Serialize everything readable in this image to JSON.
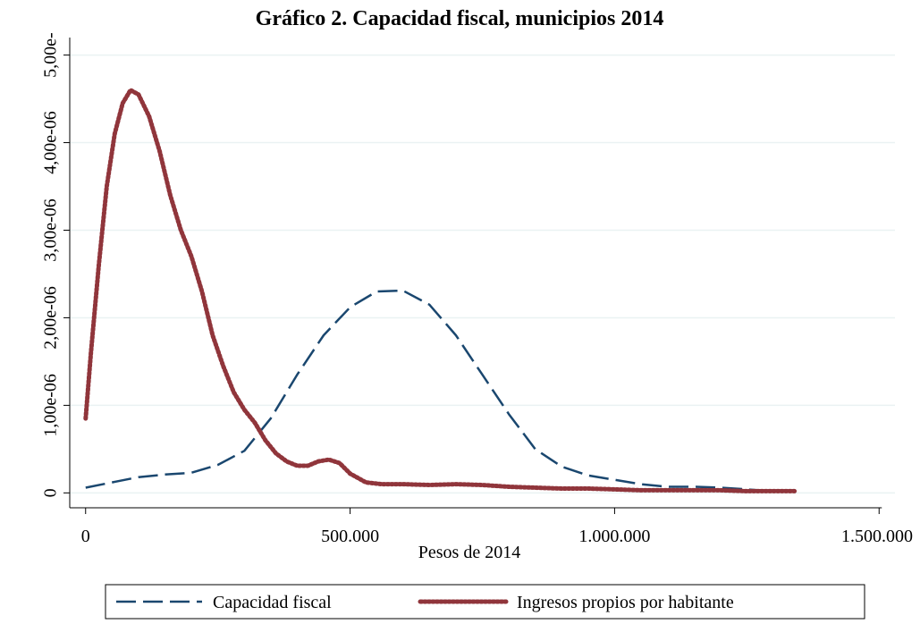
{
  "chart_data": {
    "type": "line",
    "title": "Gráfico 2. Capacidad fiscal, municipios 2014",
    "xlabel": "Pesos de 2014",
    "xlim": [
      -30000,
      1530000
    ],
    "ylim": [
      -1.7e-07,
      5.2e-06
    ],
    "xticks": [
      0,
      {
        "value": 500000,
        "label": "500.000"
      },
      {
        "value": 1000000,
        "label": "1.000.000"
      },
      {
        "value": 1500000,
        "label": "1.500.000"
      }
    ],
    "yticks": [
      0,
      {
        "value": 1e-06,
        "label": "1,00e-06"
      },
      {
        "value": 2e-06,
        "label": "2,00e-06"
      },
      {
        "value": 3e-06,
        "label": "3,00e-06"
      },
      {
        "value": 4e-06,
        "label": "4,00e-06"
      },
      {
        "value": 5e-06,
        "label": "5,00e-"
      }
    ],
    "grid": true,
    "legend": "bottom",
    "series": [
      {
        "name": "Capacidad fiscal",
        "color": "#1a476f",
        "style": "dashed",
        "x": [
          0,
          50000,
          100000,
          150000,
          200000,
          250000,
          300000,
          350000,
          400000,
          450000,
          500000,
          550000,
          600000,
          650000,
          700000,
          750000,
          800000,
          850000,
          900000,
          950000,
          1000000,
          1050000,
          1100000,
          1150000,
          1200000,
          1250000,
          1300000,
          1330000
        ],
        "values": [
          6e-08,
          1.2e-07,
          1.8e-07,
          2.1e-07,
          2.3e-07,
          3.2e-07,
          4.8e-07,
          8.5e-07,
          1.35e-06,
          1.8e-06,
          2.12e-06,
          2.3e-06,
          2.31e-06,
          2.15e-06,
          1.8e-06,
          1.35e-06,
          9e-07,
          5e-07,
          3e-07,
          2e-07,
          1.5e-07,
          1e-07,
          7e-08,
          7e-08,
          6e-08,
          4e-08,
          2e-08,
          2e-08
        ]
      },
      {
        "name": "Ingresos propios por habitante",
        "color": "#90353b",
        "style": "dotted",
        "x": [
          0,
          10000,
          25000,
          40000,
          55000,
          70000,
          85000,
          100000,
          120000,
          140000,
          160000,
          180000,
          200000,
          220000,
          240000,
          260000,
          280000,
          300000,
          320000,
          340000,
          360000,
          380000,
          400000,
          420000,
          440000,
          460000,
          480000,
          500000,
          530000,
          560000,
          600000,
          650000,
          700000,
          750000,
          800000,
          850000,
          900000,
          950000,
          1000000,
          1050000,
          1100000,
          1150000,
          1200000,
          1250000,
          1300000,
          1340000
        ],
        "values": [
          8.5e-07,
          1.6e-06,
          2.6e-06,
          3.5e-06,
          4.1e-06,
          4.45e-06,
          4.6e-06,
          4.55e-06,
          4.3e-06,
          3.9e-06,
          3.4e-06,
          3e-06,
          2.7e-06,
          2.3e-06,
          1.8e-06,
          1.45e-06,
          1.15e-06,
          9.5e-07,
          8e-07,
          6e-07,
          4.5e-07,
          3.6e-07,
          3.1e-07,
          3.1e-07,
          3.6e-07,
          3.8e-07,
          3.4e-07,
          2.2e-07,
          1.2e-07,
          1e-07,
          1e-07,
          9e-08,
          1e-07,
          9e-08,
          7e-08,
          6e-08,
          5e-08,
          5e-08,
          4e-08,
          3e-08,
          3e-08,
          3e-08,
          3e-08,
          2e-08,
          2e-08,
          2e-08
        ]
      }
    ]
  }
}
